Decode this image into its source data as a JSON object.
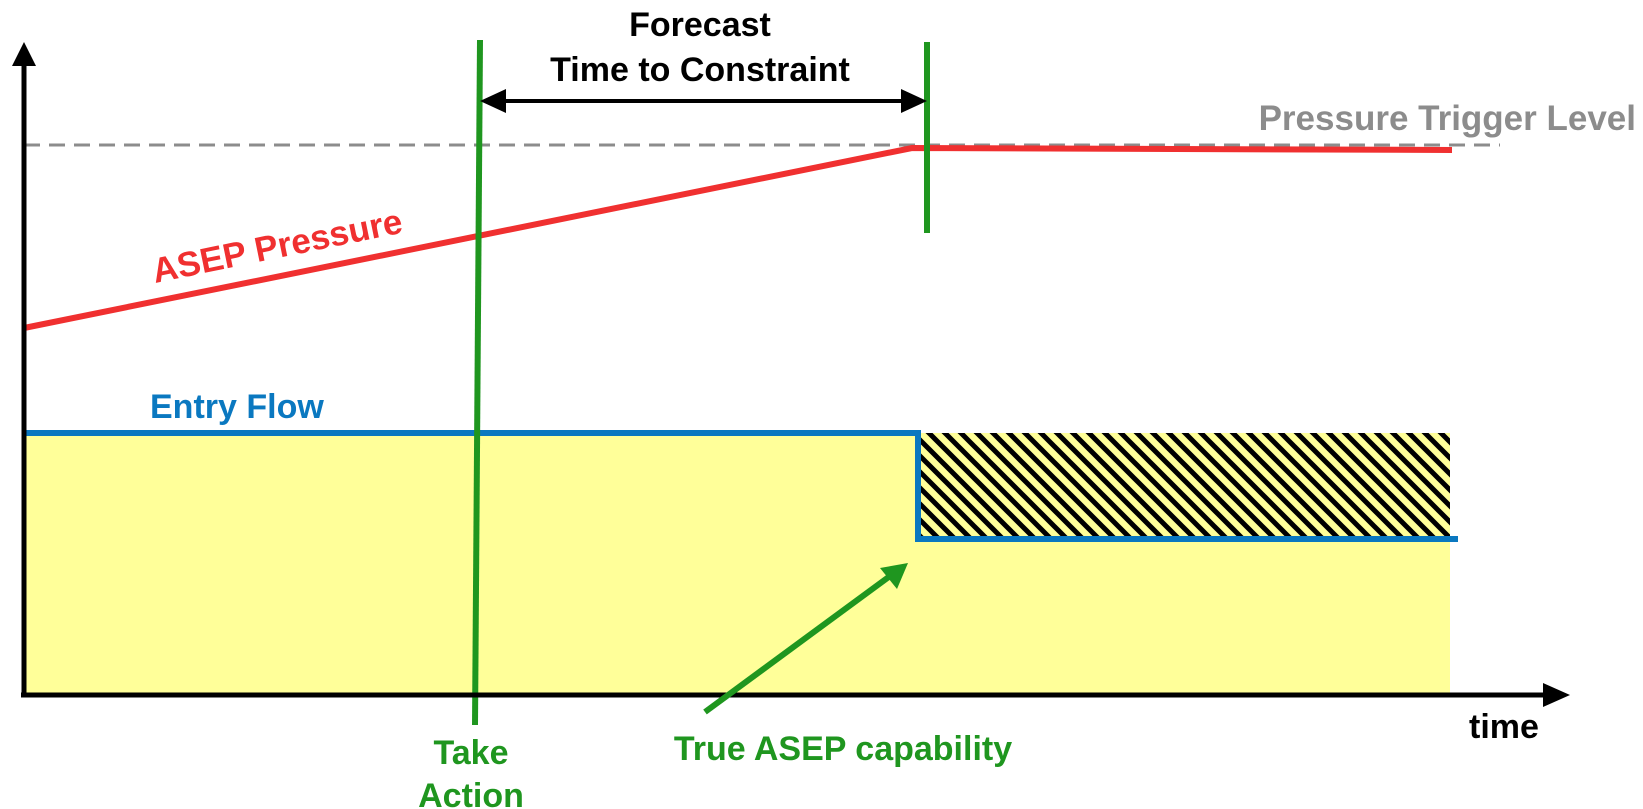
{
  "labels": {
    "forecast_line1": "Forecast",
    "forecast_line2": "Time to Constraint",
    "pressure_trigger": "Pressure Trigger Level",
    "asep_pressure": "ASEP Pressure",
    "entry_flow": "Entry Flow",
    "take_action_line1": "Take",
    "take_action_line2": "Action",
    "true_capability": "True ASEP capability",
    "time_axis": "time"
  },
  "colors": {
    "axis": "#000000",
    "pressure": "#f03030",
    "trigger": "#8c8c8c",
    "entry_flow": "#0a78c0",
    "markers": "#1f961f",
    "fill": "#ffff99",
    "hatch": "#000000",
    "forecast_text": "#000000"
  }
}
